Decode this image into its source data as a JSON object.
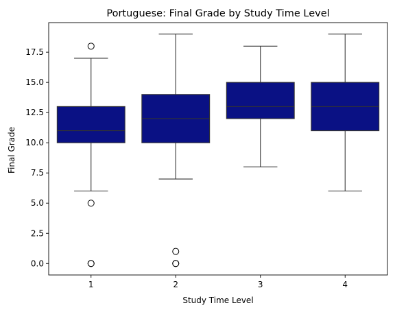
{
  "chart_data": {
    "type": "box",
    "title": "Portuguese: Final Grade by Study Time Level",
    "xlabel": "Study Time Level",
    "ylabel": "Final Grade",
    "categories": [
      "1",
      "2",
      "3",
      "4"
    ],
    "ylim": [
      -0.95,
      19.95
    ],
    "yticks": [
      0.0,
      2.5,
      5.0,
      7.5,
      10.0,
      12.5,
      15.0,
      17.5
    ],
    "ytick_labels": [
      "0.0",
      "2.5",
      "5.0",
      "7.5",
      "10.0",
      "12.5",
      "15.0",
      "17.5"
    ],
    "box_color": "#0a1184",
    "line_color": "#333333",
    "boxes": [
      {
        "category": "1",
        "whisker_low": 6,
        "q1": 10,
        "median": 11,
        "q3": 13,
        "whisker_high": 17,
        "outliers": [
          18,
          5,
          0,
          0
        ]
      },
      {
        "category": "2",
        "whisker_low": 7,
        "q1": 10,
        "median": 12,
        "q3": 14,
        "whisker_high": 19,
        "outliers": [
          1,
          0,
          0
        ]
      },
      {
        "category": "3",
        "whisker_low": 8,
        "q1": 12,
        "median": 13,
        "q3": 15,
        "whisker_high": 18,
        "outliers": []
      },
      {
        "category": "4",
        "whisker_low": 6,
        "q1": 11,
        "median": 13,
        "q3": 15,
        "whisker_high": 19,
        "outliers": []
      }
    ]
  }
}
